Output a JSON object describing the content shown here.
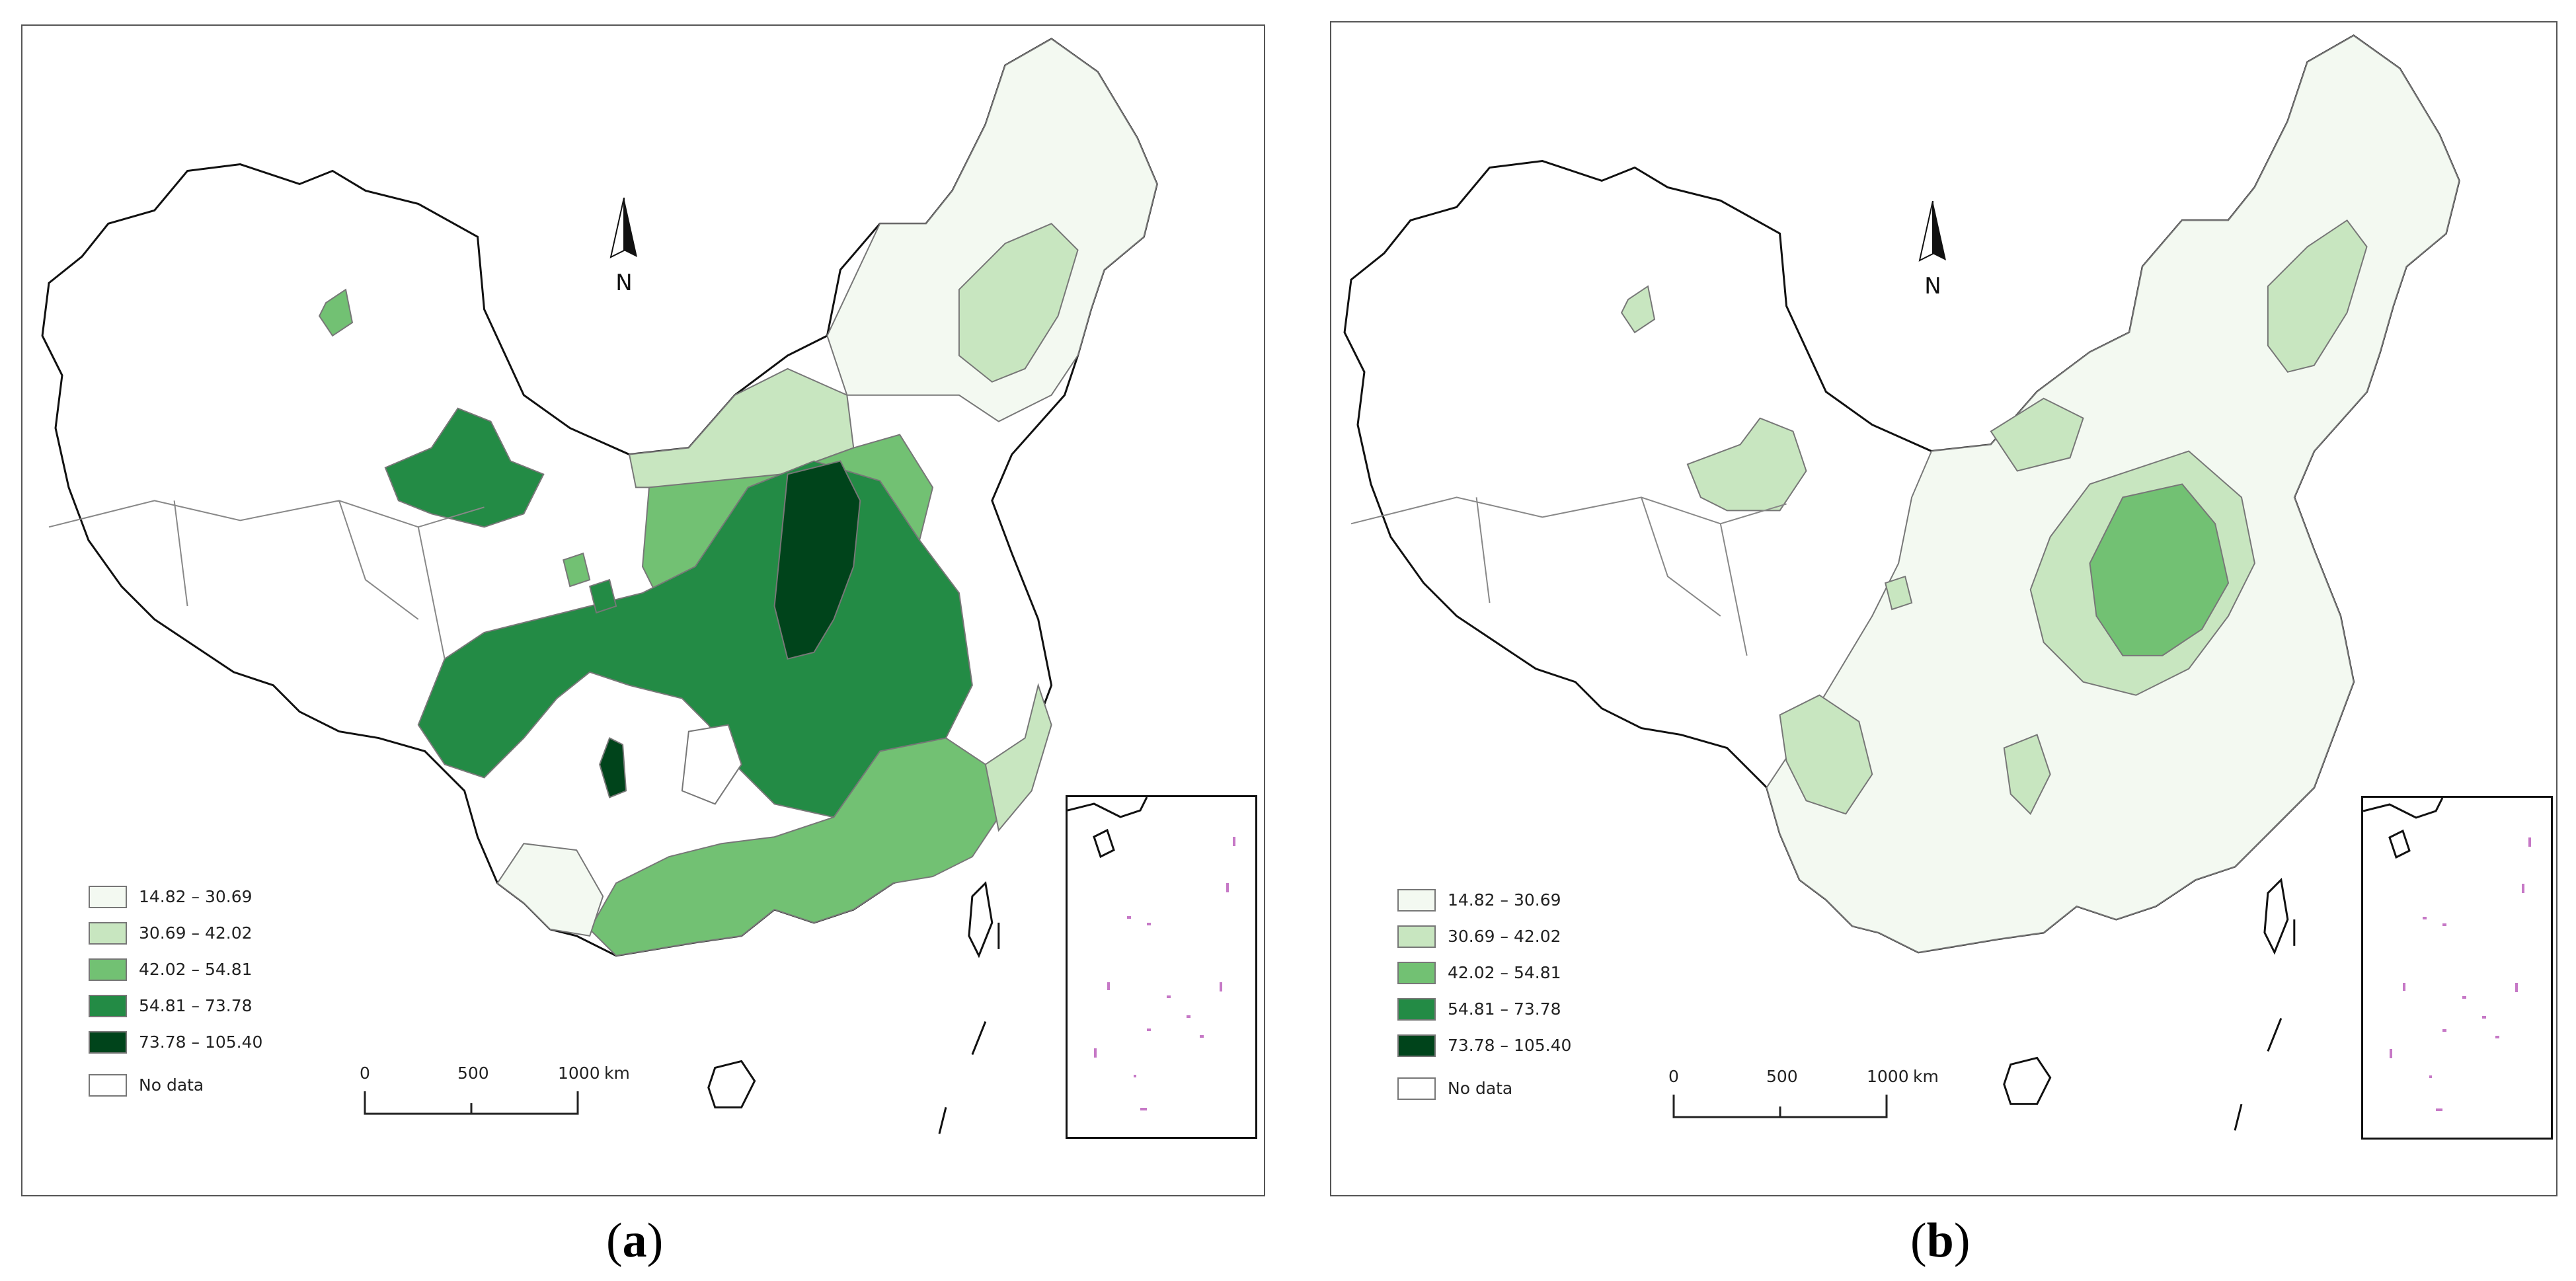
{
  "panels": [
    {
      "caption_open": "(",
      "caption_letter": "a",
      "caption_close": ")",
      "north_label": "N",
      "legend": [
        {
          "label": "14.82 – 30.69",
          "color": "#f3f9f1"
        },
        {
          "label": "30.69 – 42.02",
          "color": "#c8e6c0"
        },
        {
          "label": "42.02 – 54.81",
          "color": "#72c173"
        },
        {
          "label": "54.81 – 73.78",
          "color": "#238b45"
        },
        {
          "label": "73.78 – 105.40",
          "color": "#00441b"
        },
        {
          "label": "No data",
          "color": "#ffffff"
        }
      ],
      "scale": {
        "ticks": [
          "0",
          "500",
          "1000"
        ],
        "unit": "km"
      }
    },
    {
      "caption_open": "(",
      "caption_letter": "b",
      "caption_close": ")",
      "north_label": "N",
      "legend": [
        {
          "label": "14.82 – 30.69",
          "color": "#f3f9f1"
        },
        {
          "label": "30.69 – 42.02",
          "color": "#c8e6c0"
        },
        {
          "label": "42.02 – 54.81",
          "color": "#72c173"
        },
        {
          "label": "54.81 – 73.78",
          "color": "#238b45"
        },
        {
          "label": "73.78 – 105.40",
          "color": "#00441b"
        },
        {
          "label": "No data",
          "color": "#ffffff"
        }
      ],
      "scale": {
        "ticks": [
          "0",
          "500",
          "1000"
        ],
        "unit": "km"
      }
    }
  ]
}
